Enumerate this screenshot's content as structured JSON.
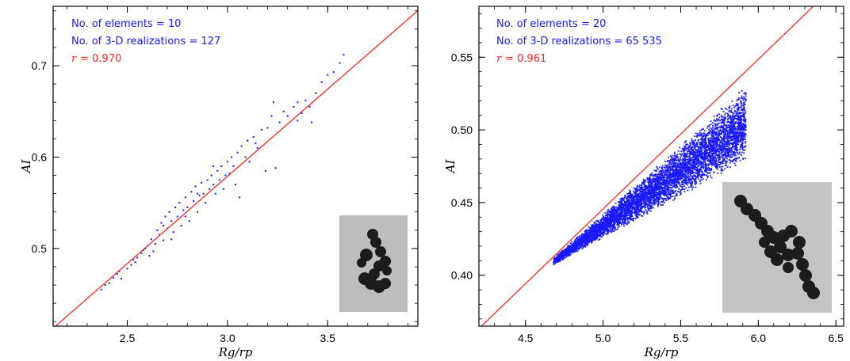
{
  "chart_data": [
    {
      "type": "scatter",
      "xlabel": "Rg/rp",
      "ylabel": "AI",
      "xlim": [
        2.13,
        3.95
      ],
      "ylim": [
        0.415,
        0.765
      ],
      "xticks": [
        "2.5",
        "3.0",
        "3.5"
      ],
      "xtick_values": [
        2.5,
        3.0,
        3.5
      ],
      "yticks": [
        "0.5",
        "0.6",
        "0.7"
      ],
      "ytick_values": [
        0.5,
        0.6,
        0.7
      ],
      "annotations": {
        "elements": "No. of elements = 10",
        "realizations": "No. of 3-D realizations = 127",
        "r_symbol": "r",
        "r_value": "= 0.970"
      },
      "fit_line": {
        "slope": 0.191,
        "intercept": 0.006
      },
      "point_color": "#1a1aff",
      "line_color": "#ff2a2a",
      "points": [
        [
          2.37,
          0.455
        ],
        [
          2.39,
          0.46
        ],
        [
          2.41,
          0.462
        ],
        [
          2.43,
          0.468
        ],
        [
          2.45,
          0.472
        ],
        [
          2.47,
          0.467
        ],
        [
          2.5,
          0.478
        ],
        [
          2.52,
          0.482
        ],
        [
          2.53,
          0.488
        ],
        [
          2.55,
          0.49
        ],
        [
          2.57,
          0.495
        ],
        [
          2.58,
          0.498
        ],
        [
          2.6,
          0.503
        ],
        [
          2.61,
          0.492
        ],
        [
          2.62,
          0.51
        ],
        [
          2.63,
          0.497
        ],
        [
          2.64,
          0.505
        ],
        [
          2.65,
          0.52
        ],
        [
          2.66,
          0.515
        ],
        [
          2.67,
          0.528
        ],
        [
          2.68,
          0.509
        ],
        [
          2.69,
          0.535
        ],
        [
          2.7,
          0.522
        ],
        [
          2.71,
          0.54
        ],
        [
          2.72,
          0.53
        ],
        [
          2.73,
          0.518
        ],
        [
          2.74,
          0.545
        ],
        [
          2.75,
          0.535
        ],
        [
          2.76,
          0.55
        ],
        [
          2.77,
          0.525
        ],
        [
          2.78,
          0.542
        ],
        [
          2.79,
          0.556
        ],
        [
          2.8,
          0.545
        ],
        [
          2.81,
          0.53
        ],
        [
          2.82,
          0.562
        ],
        [
          2.83,
          0.552
        ],
        [
          2.84,
          0.568
        ],
        [
          2.85,
          0.54
        ],
        [
          2.86,
          0.558
        ],
        [
          2.87,
          0.572
        ],
        [
          2.88,
          0.56
        ],
        [
          2.89,
          0.55
        ],
        [
          2.9,
          0.575
        ],
        [
          2.91,
          0.565
        ],
        [
          2.92,
          0.58
        ],
        [
          2.93,
          0.57
        ],
        [
          2.94,
          0.56
        ],
        [
          2.95,
          0.585
        ],
        [
          2.96,
          0.575
        ],
        [
          2.97,
          0.59
        ],
        [
          2.98,
          0.565
        ],
        [
          3.0,
          0.595
        ],
        [
          3.01,
          0.582
        ],
        [
          3.02,
          0.6
        ],
        [
          3.03,
          0.59
        ],
        [
          3.05,
          0.605
        ],
        [
          3.06,
          0.556
        ],
        [
          3.07,
          0.612
        ],
        [
          3.09,
          0.6
        ],
        [
          3.1,
          0.618
        ],
        [
          3.11,
          0.595
        ],
        [
          3.13,
          0.622
        ],
        [
          3.15,
          0.61
        ],
        [
          3.17,
          0.63
        ],
        [
          3.19,
          0.585
        ],
        [
          3.2,
          0.632
        ],
        [
          3.22,
          0.645
        ],
        [
          3.23,
          0.66
        ],
        [
          3.24,
          0.588
        ],
        [
          3.26,
          0.638
        ],
        [
          3.28,
          0.65
        ],
        [
          3.3,
          0.645
        ],
        [
          3.33,
          0.655
        ],
        [
          3.35,
          0.66
        ],
        [
          3.37,
          0.648
        ],
        [
          3.39,
          0.662
        ],
        [
          3.41,
          0.655
        ],
        [
          3.42,
          0.638
        ],
        [
          3.44,
          0.67
        ],
        [
          3.47,
          0.682
        ],
        [
          3.5,
          0.69
        ],
        [
          3.53,
          0.693
        ],
        [
          3.56,
          0.703
        ],
        [
          3.58,
          0.712
        ],
        [
          2.46,
          0.475
        ],
        [
          2.54,
          0.485
        ],
        [
          2.59,
          0.5
        ],
        [
          2.68,
          0.525
        ],
        [
          2.72,
          0.51
        ],
        [
          2.79,
          0.535
        ],
        [
          2.85,
          0.56
        ],
        [
          2.93,
          0.59
        ],
        [
          2.99,
          0.58
        ],
        [
          3.04,
          0.57
        ],
        [
          3.14,
          0.615
        ],
        [
          3.35,
          0.64
        ]
      ],
      "inset": "left"
    },
    {
      "type": "scatter",
      "xlabel": "Rg/rp",
      "ylabel": "AI",
      "xlim": [
        4.2,
        6.55
      ],
      "ylim": [
        0.365,
        0.585
      ],
      "xticks": [
        "4.5",
        "5.0",
        "5.5",
        "6.0",
        "6.5"
      ],
      "xtick_values": [
        4.5,
        5.0,
        5.5,
        6.0,
        6.5
      ],
      "yticks": [
        "0.40",
        "0.45",
        "0.50",
        "0.55"
      ],
      "ytick_values": [
        0.4,
        0.45,
        0.5,
        0.55
      ],
      "annotations": {
        "elements": "No. of elements = 20",
        "realizations": "No. of 3-D realizations = 65 535",
        "r_symbol": "r",
        "r_value": "= 0.961"
      },
      "fit_line": {
        "slope": 0.1029,
        "intercept": -0.0688
      },
      "point_color": "#1a1aff",
      "line_color": "#ff2a2a",
      "cloud": {
        "x_min": 4.68,
        "x_max": 5.92,
        "upper_start": 0.412,
        "upper_end": 0.53,
        "lower_start": 0.407,
        "lower_end": 0.478,
        "count": 6000
      },
      "inset": "right"
    }
  ]
}
